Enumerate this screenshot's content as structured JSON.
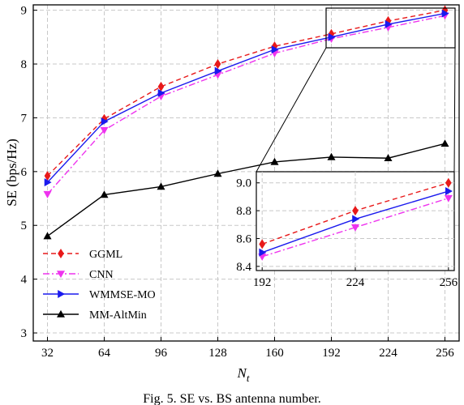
{
  "chart_data": [
    {
      "type": "line",
      "x": [
        32,
        64,
        96,
        128,
        160,
        192,
        224,
        256
      ],
      "xlabel": "N_t",
      "ylabel": "SE (bps/Hz)",
      "xlim": [
        24,
        264
      ],
      "ylim": [
        2.85,
        9.1
      ],
      "xticks": [
        32,
        64,
        96,
        128,
        160,
        192,
        224,
        256
      ],
      "yticks": [
        3,
        4,
        5,
        6,
        7,
        8,
        9
      ],
      "grid": true,
      "legend_position": "bottom-left",
      "series": [
        {
          "name": "GGML",
          "color": "#e8191a",
          "dash": "dashed",
          "marker": "diamond",
          "x": [
            32,
            64,
            96,
            128,
            160,
            192,
            224,
            256
          ],
          "values": [
            5.92,
            6.98,
            7.58,
            8.0,
            8.33,
            8.56,
            8.8,
            9.0
          ]
        },
        {
          "name": "CNN",
          "color": "#ee33ee",
          "dash": "dashdot",
          "marker": "triangle-down",
          "x": [
            32,
            64,
            96,
            128,
            160,
            192,
            224,
            256
          ],
          "values": [
            5.58,
            6.77,
            7.4,
            7.8,
            8.2,
            8.47,
            8.68,
            8.9
          ]
        },
        {
          "name": "WMMSE-MO",
          "color": "#1a1aee",
          "dash": "solid",
          "marker": "triangle-right",
          "x": [
            32,
            64,
            96,
            128,
            160,
            192,
            224,
            256
          ],
          "values": [
            5.8,
            6.93,
            7.46,
            7.87,
            8.27,
            8.5,
            8.74,
            8.94
          ]
        },
        {
          "name": "MM-AltMin",
          "color": "#000000",
          "dash": "solid",
          "marker": "triangle-up",
          "x": [
            32,
            64,
            96,
            128,
            160,
            192,
            224,
            256
          ],
          "values": [
            4.8,
            5.57,
            5.72,
            5.96,
            6.18,
            6.27,
            6.25,
            6.52
          ]
        }
      ]
    },
    {
      "type": "line",
      "inset": true,
      "xlim": [
        190,
        258
      ],
      "ylim": [
        8.37,
        9.08
      ],
      "xticks": [
        192,
        224,
        256
      ],
      "yticks": [
        8.4,
        8.6,
        8.8,
        9.0
      ],
      "ytick_labels": [
        "8.4",
        "8.6",
        "8.8",
        "9.0"
      ],
      "series": [
        {
          "name": "GGML",
          "x": [
            192,
            224,
            256
          ],
          "values": [
            8.56,
            8.8,
            9.0
          ]
        },
        {
          "name": "CNN",
          "x": [
            192,
            224,
            256
          ],
          "values": [
            8.47,
            8.68,
            8.89
          ]
        },
        {
          "name": "WMMSE-MO",
          "x": [
            192,
            224,
            256
          ],
          "values": [
            8.5,
            8.74,
            8.94
          ]
        }
      ]
    }
  ],
  "caption": "Fig. 5.  SE vs. BS antenna number."
}
